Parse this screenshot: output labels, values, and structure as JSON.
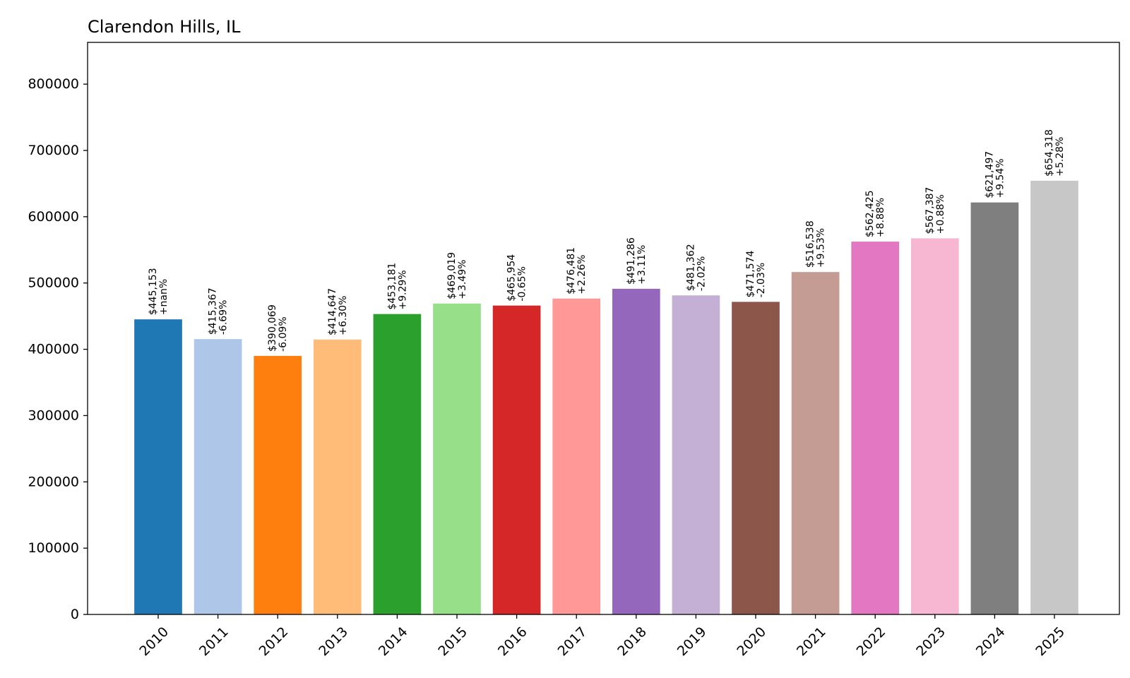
{
  "chart_data": {
    "type": "bar",
    "title": "Clarendon Hills, IL",
    "xlabel": "",
    "ylabel": "",
    "ylim": [
      0,
      863000
    ],
    "yticks": [
      0,
      100000,
      200000,
      300000,
      400000,
      500000,
      600000,
      700000,
      800000
    ],
    "grid": false,
    "legend": "none",
    "categories": [
      "2010",
      "2011",
      "2012",
      "2013",
      "2014",
      "2015",
      "2016",
      "2017",
      "2018",
      "2019",
      "2020",
      "2021",
      "2022",
      "2023",
      "2024",
      "2025"
    ],
    "values": [
      445153,
      415367,
      390069,
      414647,
      453181,
      469019,
      465954,
      476481,
      491286,
      481362,
      471574,
      516538,
      562425,
      567387,
      621497,
      654318
    ],
    "value_labels": [
      "$445,153",
      "$415,367",
      "$390,069",
      "$414,647",
      "$453,181",
      "$469,019",
      "$465,954",
      "$476,481",
      "$491,286",
      "$481,362",
      "$471,574",
      "$516,538",
      "$562,425",
      "$567,387",
      "$621,497",
      "$654,318"
    ],
    "change_labels": [
      "+nan%",
      "-6.69%",
      "-6.09%",
      "+6.30%",
      "+9.29%",
      "+3.49%",
      "-0.65%",
      "+2.26%",
      "+3.11%",
      "-2.02%",
      "-2.03%",
      "+9.53%",
      "+8.88%",
      "+0.88%",
      "+9.54%",
      "+5.28%"
    ],
    "colors": [
      "#1f77b4",
      "#aec7e8",
      "#ff7f0e",
      "#ffbb78",
      "#2ca02c",
      "#98df8a",
      "#d62728",
      "#ff9896",
      "#9467bd",
      "#c5b0d5",
      "#8c564b",
      "#c49c94",
      "#e377c2",
      "#f7b6d2",
      "#7f7f7f",
      "#c7c7c7"
    ]
  }
}
